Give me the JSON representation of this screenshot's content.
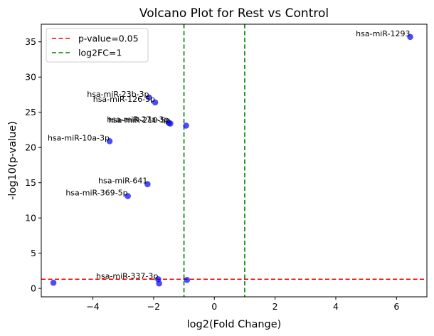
{
  "chart_data": {
    "type": "scatter",
    "title": "Volcano Plot for Rest vs Control",
    "xlabel": "log2(Fold Change)",
    "ylabel": "-log10(p-value)",
    "xlim": [
      -5.7,
      7.0
    ],
    "ylim": [
      -1.2,
      37.5
    ],
    "xticks": [
      -4,
      -2,
      0,
      2,
      4,
      6
    ],
    "yticks": [
      0,
      5,
      10,
      15,
      20,
      25,
      30,
      35
    ],
    "grid": false,
    "point_color": "#0000ff",
    "points": [
      {
        "x": 6.45,
        "y": 35.7,
        "label": "hsa-miR-1293"
      },
      {
        "x": -2.15,
        "y": 27.1,
        "label": "hsa-miR-23b-3p"
      },
      {
        "x": -1.95,
        "y": 26.4,
        "label": "hsa-miR-126-5p"
      },
      {
        "x": -1.5,
        "y": 23.5,
        "label": "hsa-miR-27a-3p"
      },
      {
        "x": -1.45,
        "y": 23.4,
        "label": "hsa-miR-210-5p"
      },
      {
        "x": -0.93,
        "y": 23.1,
        "label": ""
      },
      {
        "x": -3.45,
        "y": 20.9,
        "label": "hsa-miR-10a-3p"
      },
      {
        "x": -2.2,
        "y": 14.8,
        "label": "hsa-miR-641"
      },
      {
        "x": -2.85,
        "y": 13.1,
        "label": "hsa-miR-369-5p"
      },
      {
        "x": -1.85,
        "y": 1.3,
        "label": "hsa-miR-337-3p"
      },
      {
        "x": -0.9,
        "y": 1.2,
        "label": ""
      },
      {
        "x": -1.82,
        "y": 0.7,
        "label": ""
      },
      {
        "x": -5.3,
        "y": 0.8,
        "label": ""
      }
    ],
    "thresholds": {
      "pvalue_line_y": 1.30103,
      "pvalue_color": "#ff0000",
      "fc_lines_x": [
        -1,
        1
      ],
      "fc_color": "#008000"
    },
    "legend": {
      "position": "top-left",
      "entries": [
        {
          "label": "p-value=0.05",
          "color": "#ff0000"
        },
        {
          "label": "log2FC=1",
          "color": "#008000"
        }
      ]
    }
  }
}
